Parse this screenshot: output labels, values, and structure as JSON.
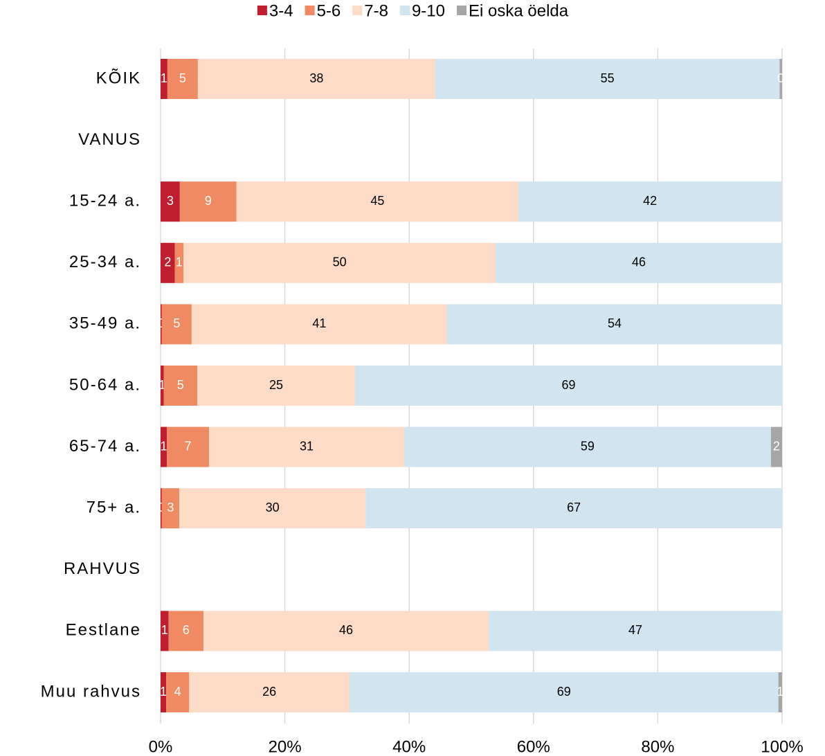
{
  "chart_data": {
    "type": "stacked_bar_horizontal",
    "categories": [
      "KÕIK",
      "VANUS",
      "15-24 a.",
      "25-34 a.",
      "35-49 a.",
      "50-64 a.",
      "65-74 a.",
      "75+ a.",
      "RAHVUS",
      "Eestlane",
      "Muu rahvus"
    ],
    "series": [
      {
        "name": "3-4",
        "color": "#be1e2d",
        "label_color": "#ffffff",
        "values": [
          1.1,
          null,
          3.1,
          2.3,
          0.2,
          0.5,
          1.0,
          0.2,
          null,
          1.3,
          0.9
        ],
        "value_labels": [
          "1",
          null,
          "3",
          "2",
          "0",
          "1",
          "1",
          "0",
          null,
          "1",
          "1"
        ]
      },
      {
        "name": "5-6",
        "color": "#ef8a62",
        "label_color": "#ffffff",
        "values": [
          4.9,
          null,
          9.1,
          1.4,
          4.8,
          5.4,
          6.8,
          2.8,
          null,
          5.6,
          3.7
        ],
        "value_labels": [
          "5",
          null,
          "9",
          "1",
          "5",
          "5",
          "7",
          "3",
          null,
          "6",
          "4"
        ]
      },
      {
        "name": "7-8",
        "color": "#fddbc7",
        "label_color": "#000000",
        "values": [
          38.2,
          null,
          45.4,
          50.2,
          41.1,
          25.4,
          31.4,
          30.0,
          null,
          45.9,
          25.8
        ],
        "value_labels": [
          "38",
          null,
          "45",
          "50",
          "41",
          "25",
          "31",
          "30",
          null,
          "46",
          "26"
        ]
      },
      {
        "name": "9-10",
        "color": "#d1e5f0",
        "label_color": "#000000",
        "values": [
          55.4,
          null,
          42.3,
          46.1,
          53.9,
          68.7,
          59.0,
          67.0,
          null,
          47.2,
          69.0
        ],
        "value_labels": [
          "55",
          null,
          "42",
          "46",
          "54",
          "69",
          "59",
          "67",
          null,
          "47",
          "69"
        ]
      },
      {
        "name": "Ei oska öelda",
        "color": "#a6a6a6",
        "label_color": "#ffffff",
        "values": [
          0.4,
          null,
          null,
          null,
          null,
          null,
          1.8,
          null,
          null,
          null,
          0.6
        ],
        "value_labels": [
          "0",
          null,
          null,
          null,
          null,
          null,
          "2",
          null,
          null,
          null,
          "1"
        ]
      }
    ],
    "xlim": [
      0,
      100
    ],
    "xticks": [
      {
        "value": 0,
        "label": "0%"
      },
      {
        "value": 20,
        "label": "20%"
      },
      {
        "value": 40,
        "label": "40%"
      },
      {
        "value": 60,
        "label": "60%"
      },
      {
        "value": 80,
        "label": "80%"
      },
      {
        "value": 100,
        "label": "100%"
      }
    ],
    "grid": true,
    "legend": "top"
  }
}
